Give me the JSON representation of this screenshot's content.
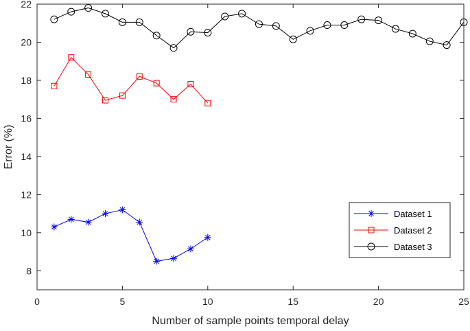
{
  "chart_data": {
    "type": "line",
    "title": "",
    "xlabel": "Number of sample points temporal delay",
    "ylabel": "Error (%)",
    "xlim": [
      0,
      25
    ],
    "ylim": [
      7,
      22
    ],
    "xticks": [
      0,
      5,
      10,
      15,
      20,
      25
    ],
    "yticks": [
      8,
      10,
      12,
      14,
      16,
      18,
      20,
      22
    ],
    "grid": false,
    "legend_position": "bottom-right",
    "series": [
      {
        "name": "Dataset 1",
        "color": "#0000ff",
        "marker": "asterisk",
        "x": [
          1,
          2,
          3,
          4,
          5,
          6,
          7,
          8,
          9,
          10
        ],
        "values": [
          10.3,
          10.7,
          10.55,
          11.0,
          11.2,
          10.55,
          8.5,
          8.65,
          9.15,
          9.75
        ]
      },
      {
        "name": "Dataset 2",
        "color": "#ff0000",
        "marker": "square",
        "x": [
          1,
          2,
          3,
          4,
          5,
          6,
          7,
          8,
          9,
          10
        ],
        "values": [
          17.7,
          19.2,
          18.3,
          16.95,
          17.2,
          18.2,
          17.85,
          17.0,
          17.8,
          16.8
        ]
      },
      {
        "name": "Dataset 3",
        "color": "#000000",
        "marker": "circle",
        "x": [
          1,
          2,
          3,
          4,
          5,
          6,
          7,
          8,
          9,
          10,
          11,
          12,
          13,
          14,
          15,
          16,
          17,
          18,
          19,
          20,
          21,
          22,
          23,
          24,
          25
        ],
        "values": [
          21.2,
          21.6,
          21.8,
          21.5,
          21.05,
          21.05,
          20.35,
          19.7,
          20.55,
          20.5,
          21.35,
          21.5,
          20.95,
          20.85,
          20.15,
          20.6,
          20.9,
          20.9,
          21.2,
          21.15,
          20.7,
          20.45,
          20.05,
          19.85,
          21.05
        ]
      }
    ]
  }
}
